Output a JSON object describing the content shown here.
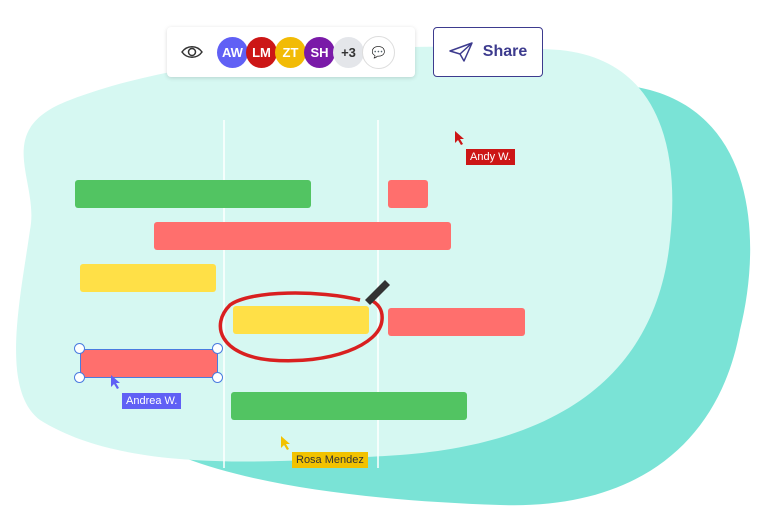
{
  "toolbar": {
    "avatars": [
      {
        "initials": "AW",
        "color": "#6060f5"
      },
      {
        "initials": "LM",
        "color": "#cc1616"
      },
      {
        "initials": "ZT",
        "color": "#f2bb05"
      },
      {
        "initials": "SH",
        "color": "#7a1aa8"
      }
    ],
    "more": "+3"
  },
  "share": {
    "label": "Share"
  },
  "cursors": {
    "andy": "Andy W.",
    "andrea": "Andrea W.",
    "rosa": "Rosa Mendez"
  },
  "colors": {
    "andy": "#cc1616",
    "andrea": "#6060f5",
    "rosa": "#f2c200"
  }
}
